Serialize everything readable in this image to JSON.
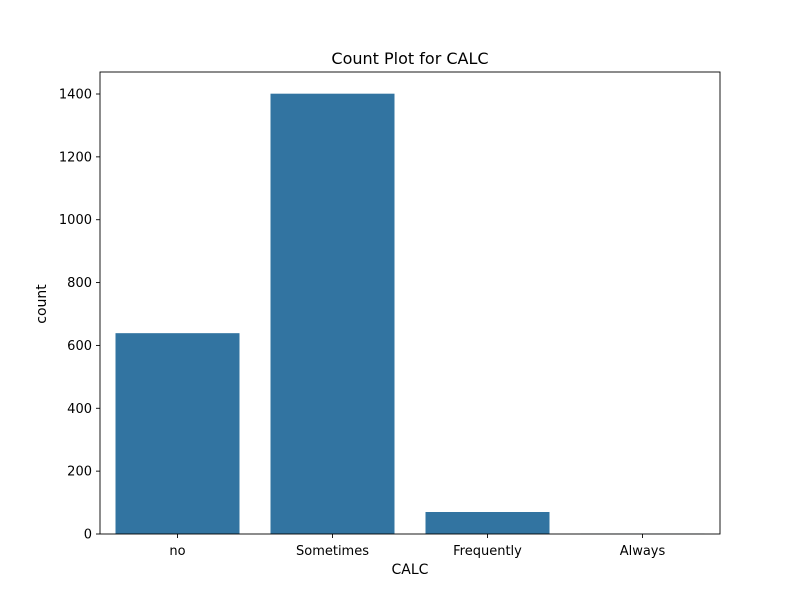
{
  "chart_data": {
    "type": "bar",
    "title": "Count Plot for CALC",
    "xlabel": "CALC",
    "ylabel": "count",
    "categories": [
      "no",
      "Sometimes",
      "Frequently",
      "Always"
    ],
    "values": [
      639,
      1401,
      70,
      1
    ],
    "ylim": [
      0,
      1470
    ],
    "yticks": [
      0,
      200,
      400,
      600,
      800,
      1000,
      1200,
      1400
    ],
    "bar_color": "#3274a1",
    "grid": false,
    "legend": "none"
  }
}
